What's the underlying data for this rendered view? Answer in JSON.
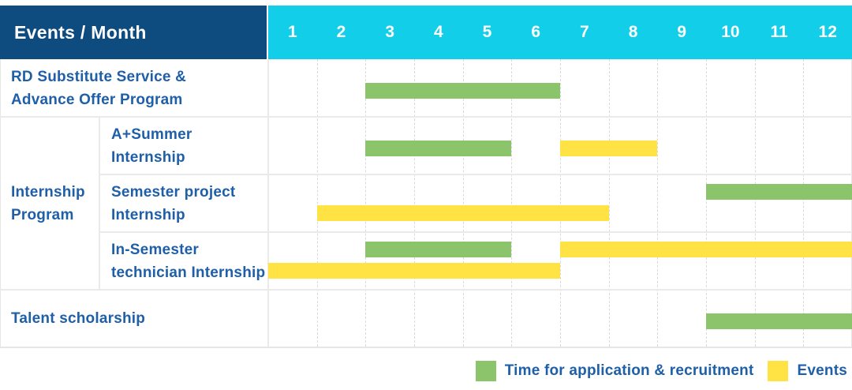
{
  "title": "Events / Month",
  "months": [
    "1",
    "2",
    "3",
    "4",
    "5",
    "6",
    "7",
    "8",
    "9",
    "10",
    "11",
    "12"
  ],
  "colors": {
    "header_bg": "#0E4B7F",
    "months_bg": "#12CEE9",
    "recruitment_green": "#8BC46A",
    "events_yellow": "#FFE345",
    "label_text": "#1E5FA8",
    "grid_solid": "#EAEAEA",
    "grid_dashed": "#D9D9D9"
  },
  "legend": [
    {
      "label": "Time for application & recruitment",
      "series": "recruitment"
    },
    {
      "label": "Events",
      "series": "events"
    }
  ],
  "group_label": {
    "text": "Internship Program",
    "lines": [
      "Internship",
      "Program"
    ]
  },
  "chart_data": {
    "type": "bar",
    "subtype": "gantt-timeline",
    "title": "Events / Month",
    "xlabel": "Month",
    "x_ticks": [
      1,
      2,
      3,
      4,
      5,
      6,
      7,
      8,
      9,
      10,
      11,
      12
    ],
    "x_range": [
      1,
      12
    ],
    "grid": "dashed-vertical-month-lines",
    "legend_position": "bottom-right",
    "series_legend": [
      {
        "name": "Time for application & recruitment",
        "key": "recruitment",
        "color": "#8BC46A"
      },
      {
        "name": "Events",
        "key": "events",
        "color": "#FFE345"
      }
    ],
    "rows": [
      {
        "group": "",
        "label": "RD Substitute Service & Advance Offer Program",
        "label_lines": [
          "RD Substitute Service &",
          "Advance Offer Program"
        ],
        "bars": [
          {
            "series": "recruitment",
            "start_month": 3,
            "end_month": 6,
            "line": "single"
          }
        ]
      },
      {
        "group": "Internship Program",
        "label": "A+Summer Internship",
        "label_lines": [
          "A+Summer",
          "Internship"
        ],
        "bars": [
          {
            "series": "recruitment",
            "start_month": 3,
            "end_month": 5,
            "line": "single"
          },
          {
            "series": "events",
            "start_month": 7,
            "end_month": 8,
            "line": "single"
          }
        ]
      },
      {
        "group": "Internship Program",
        "label": "Semester project Internship",
        "label_lines": [
          "Semester project",
          "Internship"
        ],
        "bars": [
          {
            "series": "recruitment",
            "start_month": 10,
            "end_month": 12,
            "line": "top"
          },
          {
            "series": "events",
            "start_month": 2,
            "end_month": 7,
            "line": "bottom"
          }
        ]
      },
      {
        "group": "Internship Program",
        "label": "In-Semester technician Internship",
        "label_lines": [
          "In-Semester",
          "technician Internship"
        ],
        "bars": [
          {
            "series": "recruitment",
            "start_month": 3,
            "end_month": 5,
            "line": "top"
          },
          {
            "series": "events",
            "start_month": 7,
            "end_month": 12,
            "line": "top"
          },
          {
            "series": "events",
            "start_month": 1,
            "end_month": 6,
            "line": "bottom"
          }
        ]
      },
      {
        "group": "",
        "label": "Talent scholarship",
        "label_lines": [
          "Talent scholarship"
        ],
        "bars": [
          {
            "series": "recruitment",
            "start_month": 10,
            "end_month": 12,
            "line": "single"
          }
        ]
      }
    ]
  }
}
